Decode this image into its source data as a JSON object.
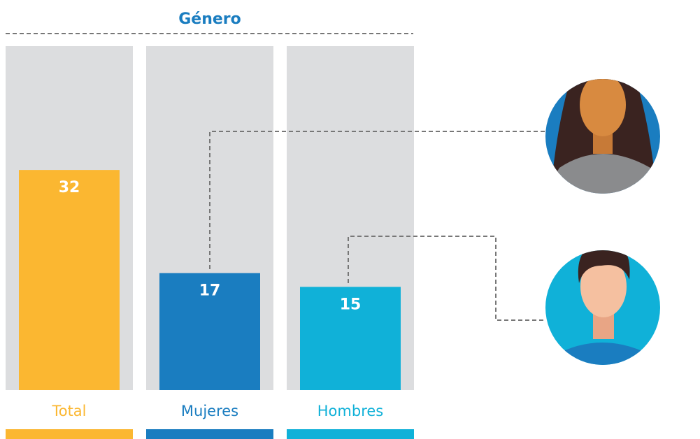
{
  "chart_data": {
    "type": "bar",
    "title": "Género",
    "categories": [
      "Total",
      "Mujeres",
      "Hombres"
    ],
    "values": [
      32,
      17,
      15
    ],
    "colors": [
      "#fbb731",
      "#1a7dc0",
      "#10b1d8"
    ],
    "ylim": [
      0,
      50
    ]
  }
}
